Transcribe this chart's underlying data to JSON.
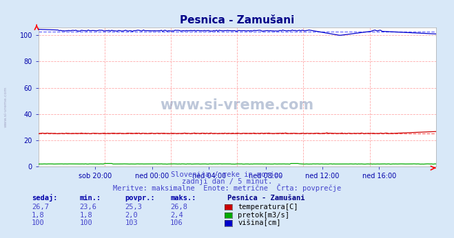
{
  "title": "Pesnica - Zamušani",
  "background_color": "#d8e8f8",
  "plot_bg_color": "#ffffff",
  "grid_color": "#ffaaaa",
  "xlabel_ticks": [
    "sob 20:00",
    "ned 00:00",
    "ned 04:00",
    "ned 08:00",
    "ned 12:00",
    "ned 16:00"
  ],
  "ylim": [
    0,
    106
  ],
  "yticks": [
    0,
    20,
    40,
    60,
    80,
    100
  ],
  "n_points": 289,
  "temp_mean": 25.3,
  "temp_min": 23.6,
  "temp_max": 26.8,
  "pretok_mean": 2.0,
  "pretok_min": 1.8,
  "pretok_max": 2.4,
  "visina_mean": 103,
  "visina_min": 100,
  "visina_max": 106,
  "temp_color": "#cc0000",
  "pretok_color": "#00aa00",
  "visina_color": "#0000cc",
  "avg_line_color_red": "#ff6666",
  "avg_line_color_blue": "#6666ff",
  "title_color": "#000088",
  "text_color": "#4444cc",
  "label_color": "#0000aa",
  "subtitle1": "Slovenija / reke in morje.",
  "subtitle2": "zadnji dan / 5 minut.",
  "subtitle3": "Meritve: maksimalne  Enote: metrične  Črta: povprečje",
  "watermark": "www.si-vreme.com",
  "legend_title": "Pesnica - Zamušani",
  "legend_items": [
    "temperatura[C]",
    "pretok[m3/s]",
    "višina[cm]"
  ],
  "legend_colors": [
    "#cc0000",
    "#00aa00",
    "#0000cc"
  ],
  "table_headers": [
    "sedaj:",
    "min.:",
    "povpr.:",
    "maks.:"
  ],
  "table_rows": [
    [
      "26,7",
      "23,6",
      "25,3",
      "26,8"
    ],
    [
      "1,8",
      "1,8",
      "2,0",
      "2,4"
    ],
    [
      "100",
      "100",
      "103",
      "106"
    ]
  ]
}
